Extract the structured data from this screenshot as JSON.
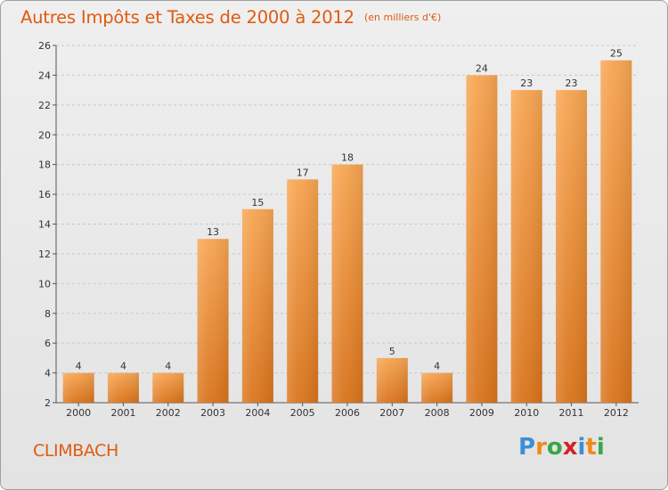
{
  "header": {
    "title": "Autres Impôts et Taxes de 2000 à 2012",
    "subtitle": "(en milliers d'€)"
  },
  "footer": {
    "place": "CLIMBACH",
    "brand_letters": [
      "P",
      "r",
      "o",
      "x",
      "i",
      "t",
      "i"
    ],
    "brand_colors": [
      "#3a8fd6",
      "#f08a1c",
      "#3aa64a",
      "#d8202a",
      "#3a8fd6",
      "#f08a1c",
      "#3aa64a"
    ]
  },
  "colors": {
    "bar_top": "#f7a552",
    "bar_bottom": "#d9741c",
    "text": "#e05a10"
  },
  "chart_data": {
    "type": "bar",
    "categories": [
      "2000",
      "2001",
      "2002",
      "2003",
      "2004",
      "2005",
      "2006",
      "2007",
      "2008",
      "2009",
      "2010",
      "2011",
      "2012"
    ],
    "values": [
      4,
      4,
      4,
      13,
      15,
      17,
      18,
      5,
      4,
      24,
      23,
      23,
      25
    ],
    "ylim": [
      2,
      26
    ],
    "yticks": [
      2,
      4,
      6,
      8,
      10,
      12,
      14,
      16,
      18,
      20,
      22,
      24,
      26
    ],
    "grid": true
  }
}
